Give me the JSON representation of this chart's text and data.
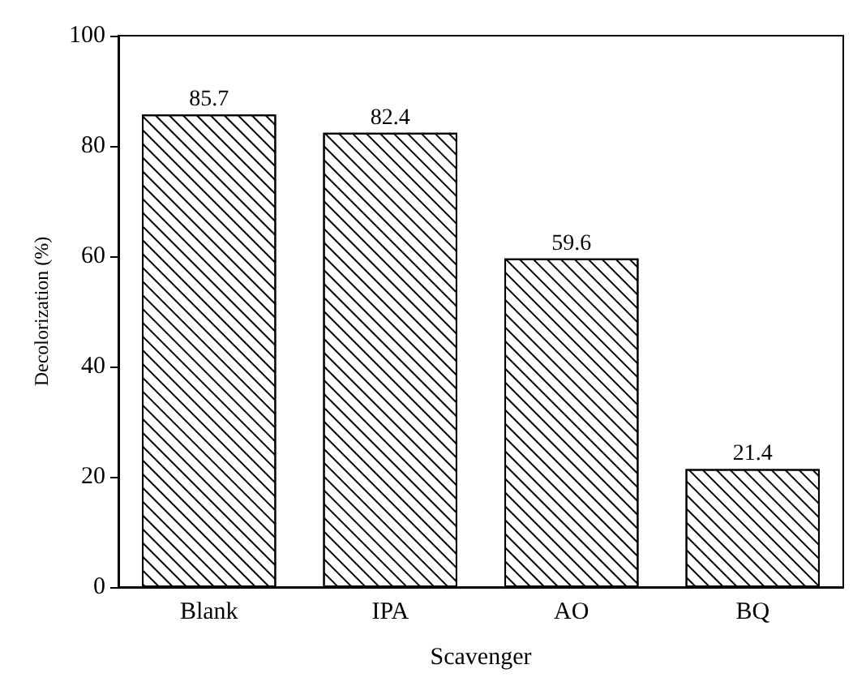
{
  "chart_data": {
    "type": "bar",
    "xlabel": "Scavenger",
    "ylabel": "Decolorization (%)",
    "categories": [
      "Blank",
      "IPA",
      "AO",
      "BQ"
    ],
    "values": [
      85.7,
      82.4,
      59.6,
      21.4
    ],
    "color": "#ffffff",
    "ylim": [
      0,
      100
    ],
    "yticks": [
      0,
      20,
      40,
      60,
      80,
      100
    ],
    "data_labels": true,
    "grid": false
  }
}
